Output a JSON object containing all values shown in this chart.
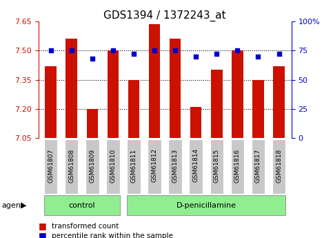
{
  "title": "GDS1394 / 1372243_at",
  "categories": [
    "GSM61807",
    "GSM61808",
    "GSM61809",
    "GSM61810",
    "GSM61811",
    "GSM61812",
    "GSM61813",
    "GSM61814",
    "GSM61815",
    "GSM61816",
    "GSM61817",
    "GSM61818"
  ],
  "bar_values": [
    7.42,
    7.56,
    7.2,
    7.5,
    7.35,
    7.635,
    7.56,
    7.21,
    7.4,
    7.5,
    7.35,
    7.42
  ],
  "percentile_values": [
    75,
    75,
    68,
    75,
    72,
    75,
    75,
    70,
    72,
    75,
    70,
    72
  ],
  "bar_bottom": 7.05,
  "ylim_left": [
    7.05,
    7.65
  ],
  "ylim_right": [
    0,
    100
  ],
  "yticks_left": [
    7.05,
    7.2,
    7.35,
    7.5,
    7.65
  ],
  "yticks_right": [
    0,
    25,
    50,
    75,
    100
  ],
  "ytick_labels_right": [
    "0",
    "25",
    "50",
    "75",
    "100%"
  ],
  "hlines": [
    7.2,
    7.35,
    7.5
  ],
  "bar_color": "#CC1100",
  "percentile_color": "#0000CC",
  "n_control": 4,
  "control_label": "control",
  "treatment_label": "D-penicillamine",
  "agent_label": "agent",
  "legend_bar_label": "transformed count",
  "legend_pct_label": "percentile rank within the sample",
  "tick_bg_color": "#C8C8C8",
  "group_bg_color": "#90EE90",
  "title_fontsize": 11,
  "tick_fontsize": 8,
  "label_fontsize": 8,
  "group_fontsize": 8,
  "legend_fontsize": 7.5
}
